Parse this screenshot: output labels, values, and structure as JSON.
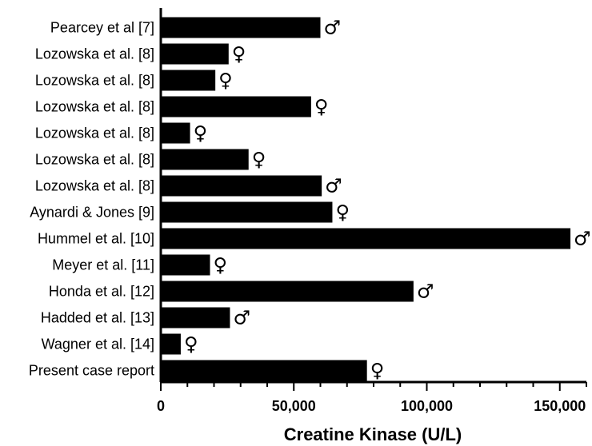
{
  "chart_data": {
    "type": "bar",
    "orientation": "horizontal",
    "categories": [
      "Pearcey et al [7]",
      "Lozowska et al. [8]",
      "Lozowska et al. [8]",
      "Lozowska et al. [8]",
      "Lozowska et al. [8]",
      "Lozowska et al. [8]",
      "Lozowska et al. [8]",
      "Aynardi & Jones [9]",
      "Hummel et al. [10]",
      "Meyer et al. [11]",
      "Honda et al. [12]",
      "Hadded et al. [13]",
      "Wagner et al. [14]",
      "Present case report"
    ],
    "values": [
      60000,
      25500,
      20500,
      56500,
      11000,
      33000,
      60500,
      64500,
      154000,
      18500,
      95000,
      26000,
      7500,
      77500
    ],
    "sex_symbols": [
      "♂",
      "♀",
      "♀",
      "♀",
      "♀",
      "♀",
      "♂",
      "♀",
      "♂",
      "♀",
      "♂",
      "♂",
      "♀",
      "♀"
    ],
    "xlabel": "Creatine Kinase (U/L)",
    "ylabel": "",
    "xlim": [
      0,
      160000
    ],
    "xticks": [
      0,
      50000,
      100000,
      150000
    ],
    "xtick_labels": [
      "0",
      "50,000",
      "100,000",
      "150,000"
    ],
    "bar_color": "#000000",
    "grid": false
  }
}
